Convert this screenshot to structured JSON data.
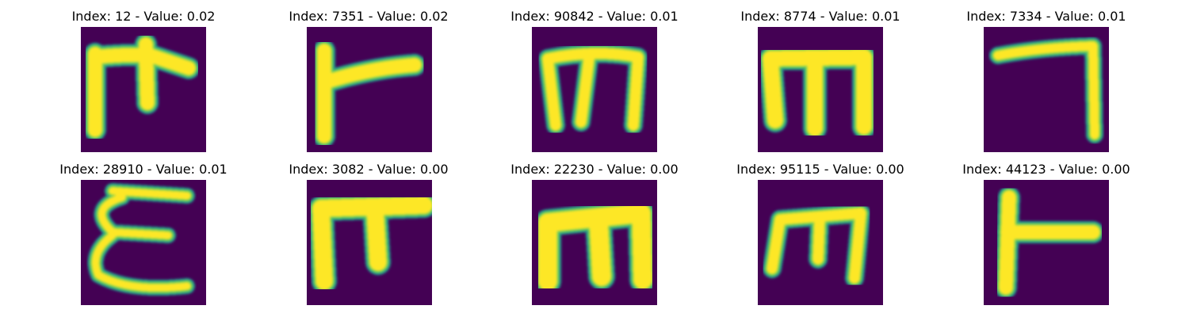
{
  "colors": {
    "background": "#440154",
    "stroke_core": "#fde725",
    "stroke_mid": "#5ec962",
    "stroke_edge": "#21918c"
  },
  "panels": [
    {
      "title": "Index: 12 - Value: 0.02",
      "glyph": "handwritten-glyph-pi-arrow"
    },
    {
      "title": "Index: 7351 - Value: 0.02",
      "glyph": "handwritten-glyph-hook"
    },
    {
      "title": "Index: 90842 - Value: 0.01",
      "glyph": "handwritten-glyph-m"
    },
    {
      "title": "Index: 8774 - Value: 0.01",
      "glyph": "handwritten-glyph-m"
    },
    {
      "title": "Index: 7334 - Value: 0.01",
      "glyph": "handwritten-glyph-seven"
    },
    {
      "title": "Index: 28910 - Value: 0.01",
      "glyph": "handwritten-glyph-epsilon"
    },
    {
      "title": "Index: 3082 - Value: 0.00",
      "glyph": "handwritten-glyph-pi"
    },
    {
      "title": "Index: 22230 - Value: 0.00",
      "glyph": "handwritten-glyph-m"
    },
    {
      "title": "Index: 95115 - Value: 0.00",
      "glyph": "handwritten-glyph-m"
    },
    {
      "title": "Index: 44123 - Value: 0.00",
      "glyph": "handwritten-glyph-t-side"
    }
  ]
}
